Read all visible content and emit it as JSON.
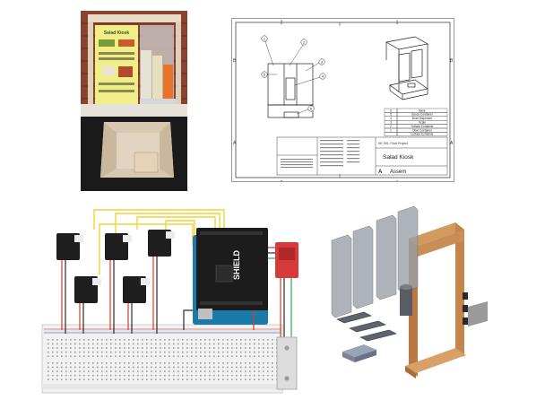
{
  "photo": {
    "poster_title": "Salad Kiosk"
  },
  "drawing": {
    "col_labels": [
      "2",
      "1"
    ],
    "row_labels": [
      "B",
      "A"
    ],
    "balloons": [
      "1",
      "2",
      "3",
      "4",
      "5",
      "6"
    ],
    "parts_table": [
      {
        "item": "6",
        "desc": "Base"
      },
      {
        "item": "5",
        "desc": "Sauce Container"
      },
      {
        "item": "4",
        "desc": "Bowl Dispenser"
      },
      {
        "item": "3",
        "desc": "Scale"
      },
      {
        "item": "2",
        "desc": "Tomato Container"
      },
      {
        "item": "1",
        "desc": "Olive Container"
      },
      {
        "item": "",
        "desc": "Lettuce Container"
      }
    ],
    "project_label": "EE 391: Final Project",
    "title": "Salad Kiosk",
    "size": "A",
    "author": "Assem"
  },
  "circuit": {
    "shield_label": "SHIELD"
  }
}
